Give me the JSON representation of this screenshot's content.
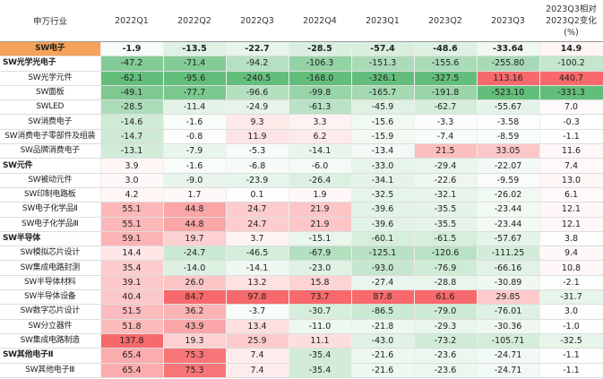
{
  "table": {
    "header": [
      "申万行业",
      "2022Q1",
      "2022Q2",
      "2022Q3",
      "2022Q4",
      "2023Q1",
      "2023Q2",
      "2023Q3",
      "2023Q3相对2023Q2变化(%)"
    ],
    "rows": [
      {
        "name": "SW电子",
        "values": [
          "-1.9",
          "-13.5",
          "-22.7",
          "-28.5",
          "-57.4",
          "-48.6",
          "-33.64",
          "14.9"
        ]
      },
      {
        "name": "SW光学光电子",
        "values": [
          "-47.2",
          "-71.4",
          "-94.2",
          "-106.3",
          "-151.3",
          "-155.6",
          "-255.80",
          "-100.2"
        ]
      },
      {
        "name": "SW光学元件",
        "values": [
          "-62.1",
          "-95.6",
          "-240.5",
          "-168.0",
          "-326.1",
          "-327.5",
          "113.16",
          "440.7"
        ]
      },
      {
        "name": "SW面板",
        "values": [
          "-49.1",
          "-77.7",
          "-96.6",
          "-99.8",
          "-165.7",
          "-191.8",
          "-523.10",
          "-331.3"
        ]
      },
      {
        "name": "SWLED",
        "values": [
          "-28.5",
          "-11.4",
          "-24.9",
          "-61.3",
          "-45.9",
          "-62.7",
          "-55.67",
          "7.0"
        ]
      },
      {
        "name": "SW消费电子",
        "values": [
          "-14.6",
          "-1.6",
          "9.3",
          "3.3",
          "-15.6",
          "-3.3",
          "-3.58",
          "-0.3"
        ]
      },
      {
        "name": "SW消费电子零部件及组装",
        "values": [
          "-14.7",
          "-0.8",
          "11.9",
          "6.2",
          "-15.9",
          "-7.4",
          "-8.59",
          "-1.1"
        ]
      },
      {
        "name": "SW品牌消费电子",
        "values": [
          "-13.1",
          "-7.9",
          "-5.3",
          "-14.1",
          "-13.4",
          "21.5",
          "33.05",
          "11.6"
        ]
      },
      {
        "name": "SW元件",
        "values": [
          "3.9",
          "-1.6",
          "-6.8",
          "-6.0",
          "-33.0",
          "-29.4",
          "-22.07",
          "7.4"
        ]
      },
      {
        "name": "SW被动元件",
        "values": [
          "3.0",
          "-9.0",
          "-23.9",
          "-26.4",
          "-34.1",
          "-22.6",
          "-9.59",
          "13.0"
        ]
      },
      {
        "name": "SW印制电路板",
        "values": [
          "4.2",
          "1.7",
          "0.1",
          "1.9",
          "-32.5",
          "-32.1",
          "-26.02",
          "6.1"
        ]
      },
      {
        "name": "SW电子化学品Ⅱ",
        "values": [
          "55.1",
          "44.8",
          "24.7",
          "21.9",
          "-39.6",
          "-35.5",
          "-23.44",
          "12.1"
        ]
      },
      {
        "name": "SW电子化学品Ⅲ",
        "values": [
          "55.1",
          "44.8",
          "24.7",
          "21.9",
          "-39.6",
          "-35.5",
          "-23.44",
          "12.1"
        ]
      },
      {
        "name": "SW半导体",
        "values": [
          "59.1",
          "19.7",
          "3.7",
          "-15.1",
          "-60.1",
          "-61.5",
          "-57.67",
          "3.8"
        ]
      },
      {
        "name": "SW模拟芯片设计",
        "values": [
          "14.4",
          "-24.7",
          "-46.5",
          "-67.9",
          "-125.1",
          "-120.6",
          "-111.25",
          "9.4"
        ]
      },
      {
        "name": "SW集成电路封测",
        "values": [
          "35.4",
          "-14.0",
          "-14.1",
          "-23.0",
          "-93.0",
          "-76.9",
          "-66.16",
          "10.8"
        ]
      },
      {
        "name": "SW半导体材料",
        "values": [
          "39.1",
          "26.0",
          "13.2",
          "15.8",
          "-27.4",
          "-28.8",
          "-30.89",
          "-2.1"
        ]
      },
      {
        "name": "SW半导体设备",
        "values": [
          "40.4",
          "84.7",
          "97.8",
          "73.7",
          "87.8",
          "61.6",
          "29.85",
          "-31.7"
        ]
      },
      {
        "name": "SW数字芯片设计",
        "values": [
          "51.5",
          "36.2",
          "-3.7",
          "-30.7",
          "-86.5",
          "-79.0",
          "-76.01",
          "3.0"
        ]
      },
      {
        "name": "SW分立器件",
        "values": [
          "51.8",
          "43.9",
          "13.4",
          "-11.0",
          "-21.8",
          "-29.3",
          "-30.36",
          "-1.0"
        ]
      },
      {
        "name": "SW集成电路制造",
        "values": [
          "137.8",
          "19.3",
          "25.9",
          "11.1",
          "-43.0",
          "-73.2",
          "-105.71",
          "-32.5"
        ]
      },
      {
        "name": "SW其他电子Ⅱ",
        "values": [
          "65.4",
          "75.3",
          "7.4",
          "-35.4",
          "-21.6",
          "-23.6",
          "-24.71",
          "-1.1"
        ]
      },
      {
        "name": "SW其他电子Ⅲ",
        "values": [
          "65.4",
          "75.3",
          "7.4",
          "-35.4",
          "-21.6",
          "-23.6",
          "-24.71",
          "-1.1"
        ]
      }
    ]
  }
}
